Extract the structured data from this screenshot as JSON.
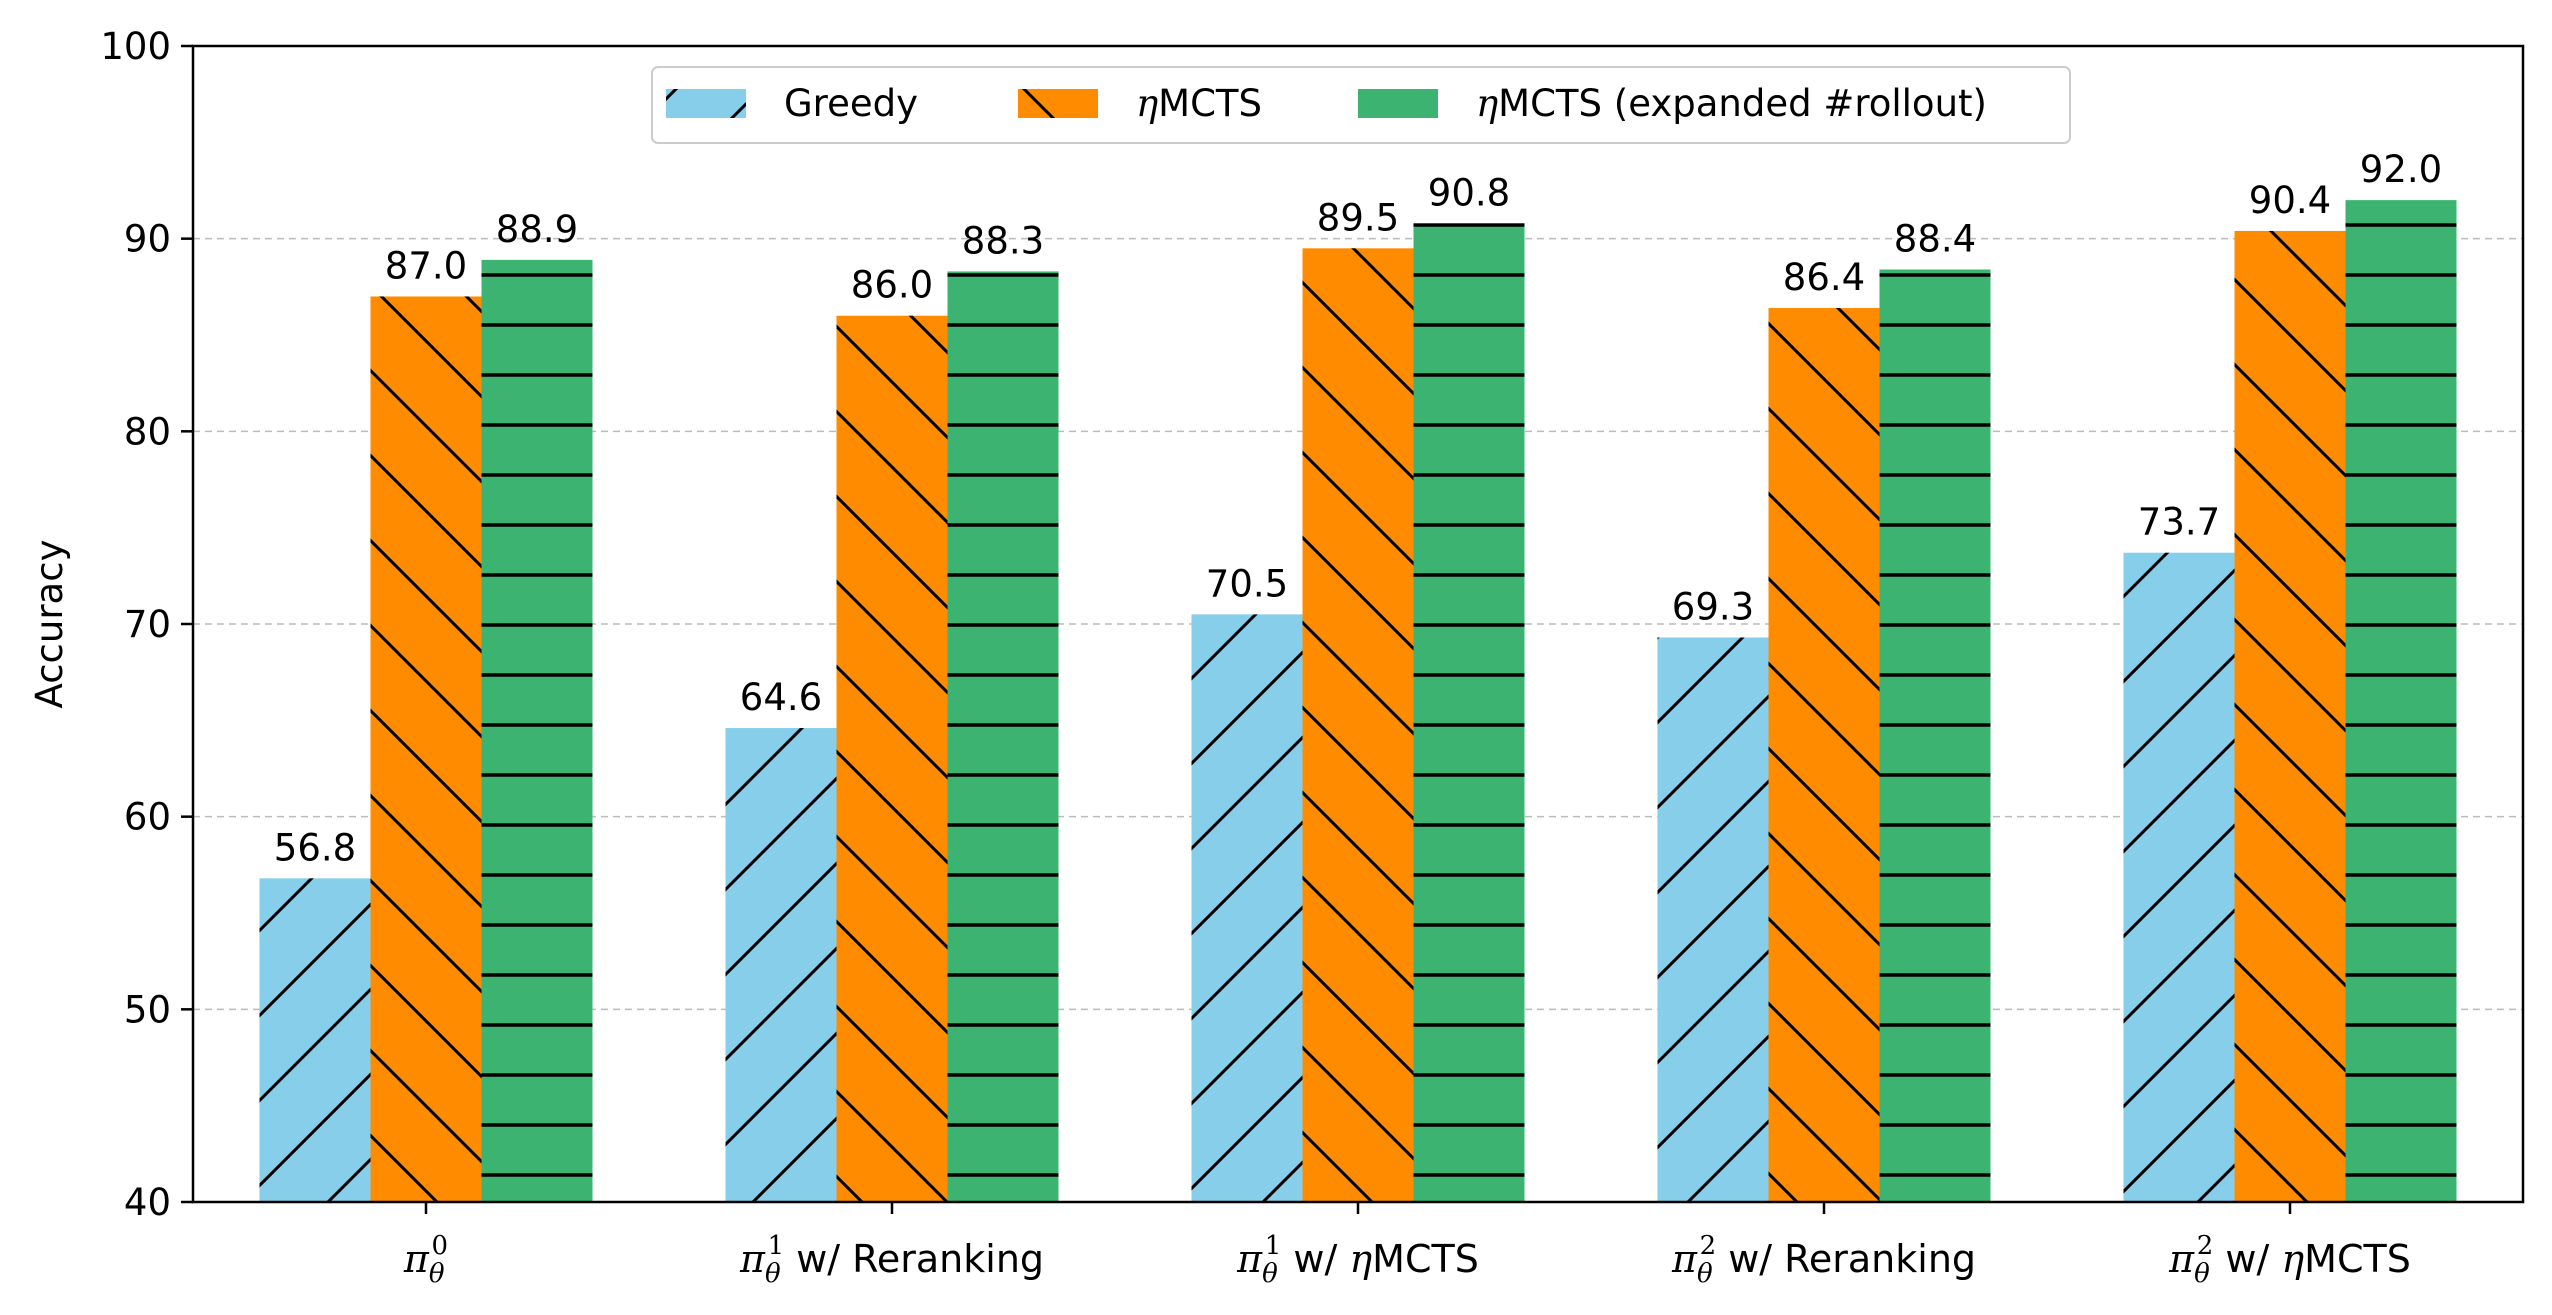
{
  "chart_data": {
    "type": "bar",
    "title": "",
    "xlabel": "",
    "ylabel": "Accuracy",
    "ylim": [
      40,
      100
    ],
    "yticks": [
      "40",
      "50",
      "60",
      "70",
      "80",
      "90",
      "100"
    ],
    "grid": "y dashed",
    "legend_position": "top-center",
    "categories": [
      {
        "sym": "π",
        "sup": "0",
        "sub": "θ",
        "suffix": "",
        "suffix_italic_eta": false
      },
      {
        "sym": "π",
        "sup": "1",
        "sub": "θ",
        "suffix": " w/ Reranking",
        "suffix_italic_eta": false
      },
      {
        "sym": "π",
        "sup": "1",
        "sub": "θ",
        "suffix": "MCTS",
        "prefix_plain": " w/ ",
        "suffix_italic_eta": true
      },
      {
        "sym": "π",
        "sup": "2",
        "sub": "θ",
        "suffix": " w/ Reranking",
        "suffix_italic_eta": false
      },
      {
        "sym": "π",
        "sup": "2",
        "sub": "θ",
        "suffix": "MCTS",
        "prefix_plain": " w/ ",
        "suffix_italic_eta": true
      }
    ],
    "series": [
      {
        "name": "Greedy",
        "name_eta": false,
        "color": "#87CEEB",
        "hatch": "diag-up",
        "values": [
          56.8,
          64.6,
          70.5,
          69.3,
          73.7
        ],
        "labels": [
          "56.8",
          "64.6",
          "70.5",
          "69.3",
          "73.7"
        ]
      },
      {
        "name": "MCTS",
        "name_eta": true,
        "color": "#FF8C00",
        "hatch": "diag-down",
        "values": [
          87.0,
          86.0,
          89.5,
          86.4,
          90.4
        ],
        "labels": [
          "87.0",
          "86.0",
          "89.5",
          "86.4",
          "90.4"
        ]
      },
      {
        "name": "MCTS (expanded #rollout)",
        "name_eta": true,
        "color": "#3CB371",
        "hatch": "horizontal",
        "values": [
          88.9,
          88.3,
          90.8,
          88.4,
          92.0
        ],
        "labels": [
          "88.9",
          "88.3",
          "90.8",
          "88.4",
          "92.0"
        ]
      }
    ]
  }
}
